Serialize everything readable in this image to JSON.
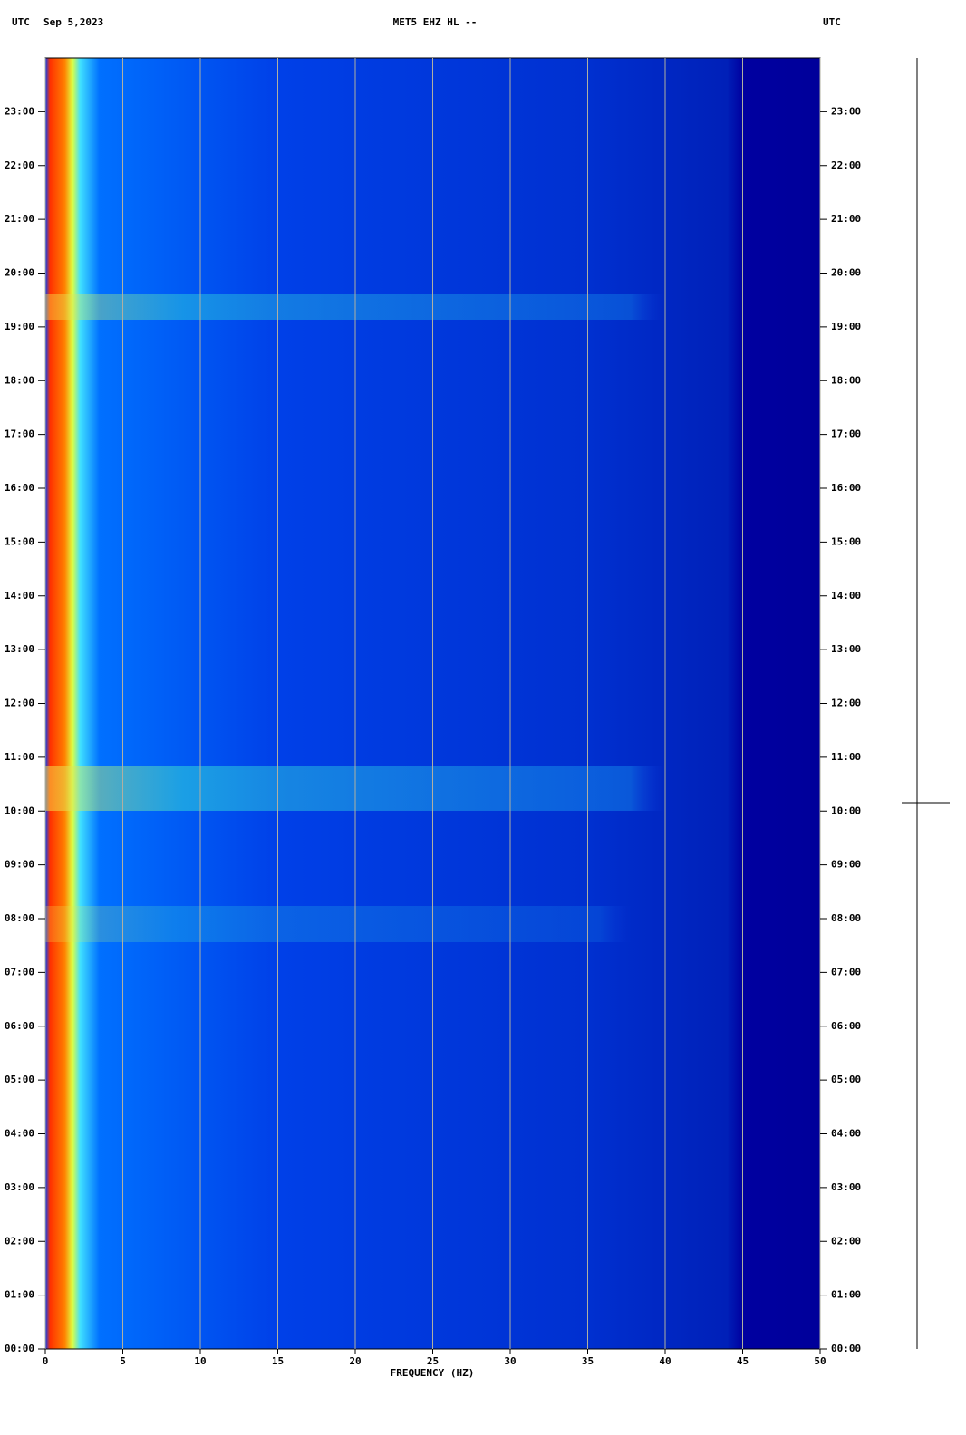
{
  "chart_data": {
    "type": "spectrogram",
    "header_left_zone": "UTC",
    "header_date": "Sep 5,2023",
    "title": "MET5 EHZ HL --",
    "header_right_zone": "UTC",
    "xlabel": "FREQUENCY (HZ)",
    "xlim": [
      0,
      50
    ],
    "xticks": [
      0,
      5,
      10,
      15,
      20,
      25,
      30,
      35,
      40,
      45,
      50
    ],
    "ylim": [
      0,
      24
    ],
    "yticks": [
      {
        "value": 0,
        "label": "00:00"
      },
      {
        "value": 1,
        "label": "01:00"
      },
      {
        "value": 2,
        "label": "02:00"
      },
      {
        "value": 3,
        "label": "03:00"
      },
      {
        "value": 4,
        "label": "04:00"
      },
      {
        "value": 5,
        "label": "05:00"
      },
      {
        "value": 6,
        "label": "06:00"
      },
      {
        "value": 7,
        "label": "07:00"
      },
      {
        "value": 8,
        "label": "08:00"
      },
      {
        "value": 9,
        "label": "09:00"
      },
      {
        "value": 10,
        "label": "10:00"
      },
      {
        "value": 11,
        "label": "11:00"
      },
      {
        "value": 12,
        "label": "12:00"
      },
      {
        "value": 13,
        "label": "13:00"
      },
      {
        "value": 14,
        "label": "14:00"
      },
      {
        "value": 15,
        "label": "15:00"
      },
      {
        "value": 16,
        "label": "16:00"
      },
      {
        "value": 17,
        "label": "17:00"
      },
      {
        "value": 18,
        "label": "18:00"
      },
      {
        "value": 19,
        "label": "19:00"
      },
      {
        "value": 20,
        "label": "20:00"
      },
      {
        "value": 21,
        "label": "21:00"
      },
      {
        "value": 22,
        "label": "22:00"
      },
      {
        "value": 23,
        "label": "23:00"
      }
    ],
    "grid": true,
    "grid_color": "#b0b0a0"
  }
}
